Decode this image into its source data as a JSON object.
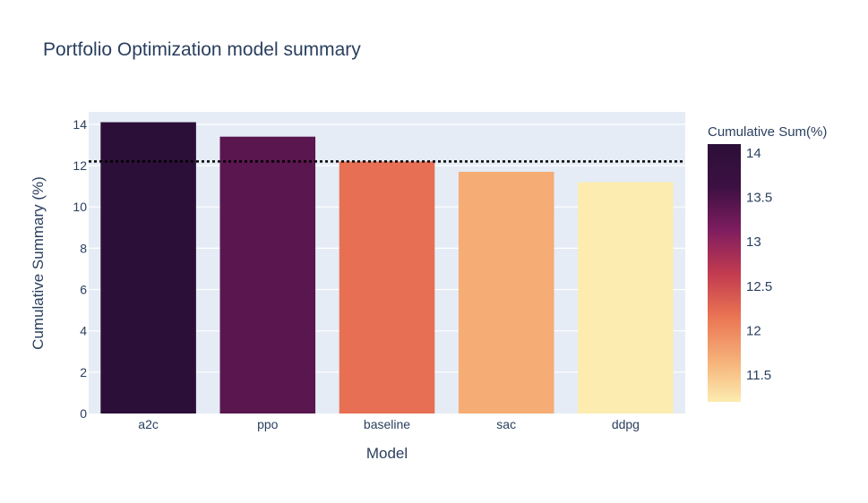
{
  "chart_data": {
    "type": "bar",
    "title": "Portfolio Optimization model summary",
    "xlabel": "Model",
    "ylabel": "Cumulative Summary (%)",
    "categories": [
      "a2c",
      "ppo",
      "baseline",
      "sac",
      "ddpg"
    ],
    "values": [
      14.1,
      13.4,
      12.2,
      11.7,
      11.2
    ],
    "ylim": [
      0,
      14.6
    ],
    "yticks": [
      0,
      2,
      4,
      6,
      8,
      10,
      12,
      14
    ],
    "reference_line": {
      "value": 12.2,
      "style": "dotted",
      "color": "#000000"
    },
    "grid": true,
    "colorbar": {
      "title": "Cumulative Sum(%)",
      "range": [
        11.2,
        14.1
      ],
      "ticks": [
        "11.5",
        "12",
        "12.5",
        "13",
        "13.5",
        "14"
      ],
      "colorscale": [
        "#fcecaf",
        "#f5ae76",
        "#ea7353",
        "#c13a50",
        "#7e1d5f",
        "#3c1042",
        "#2c0f38"
      ]
    },
    "plot_bg": "#e5ecf6"
  }
}
